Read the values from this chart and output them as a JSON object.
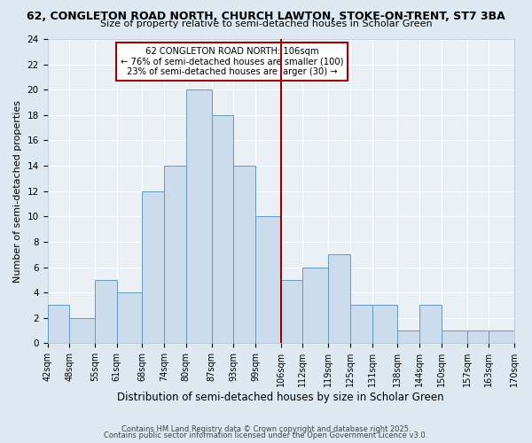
{
  "title_line1": "62, CONGLETON ROAD NORTH, CHURCH LAWTON, STOKE-ON-TRENT, ST7 3BA",
  "title_line2": "Size of property relative to semi-detached houses in Scholar Green",
  "xlabel": "Distribution of semi-detached houses by size in Scholar Green",
  "ylabel": "Number of semi-detached properties",
  "bins": [
    42,
    48,
    55,
    61,
    68,
    74,
    80,
    87,
    93,
    99,
    106,
    112,
    119,
    125,
    131,
    138,
    144,
    150,
    157,
    163,
    170
  ],
  "counts": [
    3,
    2,
    5,
    4,
    12,
    14,
    20,
    18,
    14,
    10,
    5,
    6,
    7,
    3,
    3,
    1,
    3,
    1,
    1,
    1
  ],
  "bar_color": "#ccdcec",
  "bar_edge_color": "#6699bb",
  "vline_x": 106,
  "vline_color": "#990000",
  "annotation_title": "62 CONGLETON ROAD NORTH: 106sqm",
  "annotation_line2": "← 76% of semi-detached houses are smaller (100)",
  "annotation_line3": "23% of semi-detached houses are larger (30) →",
  "annotation_box_edge": "#990000",
  "ylim": [
    0,
    24
  ],
  "yticks": [
    0,
    2,
    4,
    6,
    8,
    10,
    12,
    14,
    16,
    18,
    20,
    22,
    24
  ],
  "tick_labels": [
    "42sqm",
    "48sqm",
    "55sqm",
    "61sqm",
    "68sqm",
    "74sqm",
    "80sqm",
    "87sqm",
    "93sqm",
    "99sqm",
    "106sqm",
    "112sqm",
    "119sqm",
    "125sqm",
    "131sqm",
    "138sqm",
    "144sqm",
    "150sqm",
    "157sqm",
    "163sqm",
    "170sqm"
  ],
  "background_color": "#dde8f0",
  "plot_bg_color": "#eaf0f6",
  "grid_color": "#ffffff",
  "footnote1": "Contains HM Land Registry data © Crown copyright and database right 2025.",
  "footnote2": "Contains public sector information licensed under the Open Government Licence v3.0."
}
